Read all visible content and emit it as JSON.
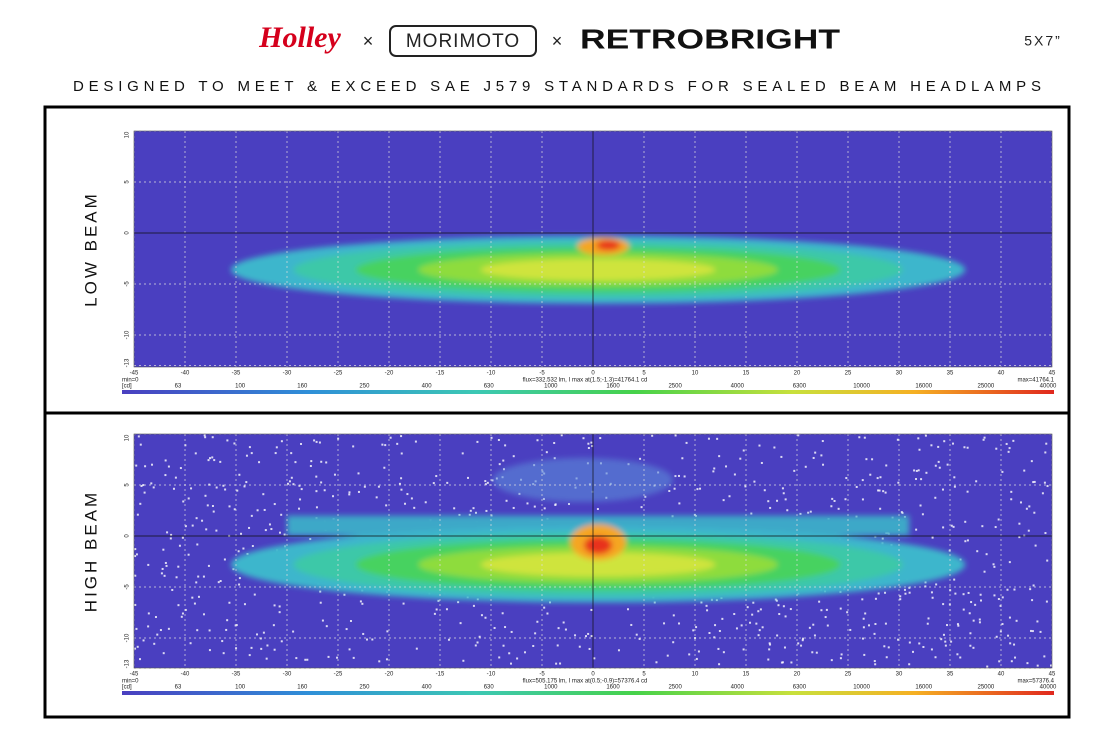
{
  "header": {
    "brand_1": "Holley",
    "separator_1": "×",
    "brand_2": "MORIMOTO",
    "separator_2": "×",
    "brand_3": "RETROBRIGHT",
    "size": "5X7”",
    "subtitle": "DESIGNED TO MEET & EXCEED SAE J579 STANDARDS FOR SEALED BEAM HEADLAMPS"
  },
  "panels": [
    {
      "label": "LOW BEAM",
      "x_ticks": [
        -45,
        -40,
        -35,
        -30,
        -25,
        -20,
        -15,
        -10,
        -5,
        0,
        5,
        10,
        15,
        20,
        25,
        30,
        35,
        40,
        45
      ],
      "y_ticks": [
        10,
        5,
        0,
        -5,
        -10,
        -13
      ],
      "min_label": "min=0",
      "stats": "flux=332.532 lm, I max at(1.5;-1.3)=41764.1 cd",
      "max_label": "max=41764.1",
      "unit": "[cd]",
      "levels": [
        63,
        100,
        160,
        250,
        400,
        630,
        1000,
        1600,
        2500,
        4000,
        6300,
        10000,
        16000,
        25000,
        40000
      ]
    },
    {
      "label": "HIGH BEAM",
      "x_ticks": [
        -45,
        -40,
        -35,
        -30,
        -25,
        -20,
        -15,
        -10,
        -5,
        0,
        5,
        10,
        15,
        20,
        25,
        30,
        35,
        40,
        45
      ],
      "y_ticks": [
        10,
        5,
        0,
        -5,
        -10,
        -13
      ],
      "min_label": "min=0",
      "stats": "flux=505.175 lm, I max at(0.5;-0.9)=57376.4 cd",
      "max_label": "max=57376.4",
      "unit": "[cd]",
      "levels": [
        63,
        100,
        160,
        250,
        400,
        630,
        1000,
        1600,
        2500,
        4000,
        6300,
        10000,
        16000,
        25000,
        40000
      ]
    }
  ]
}
